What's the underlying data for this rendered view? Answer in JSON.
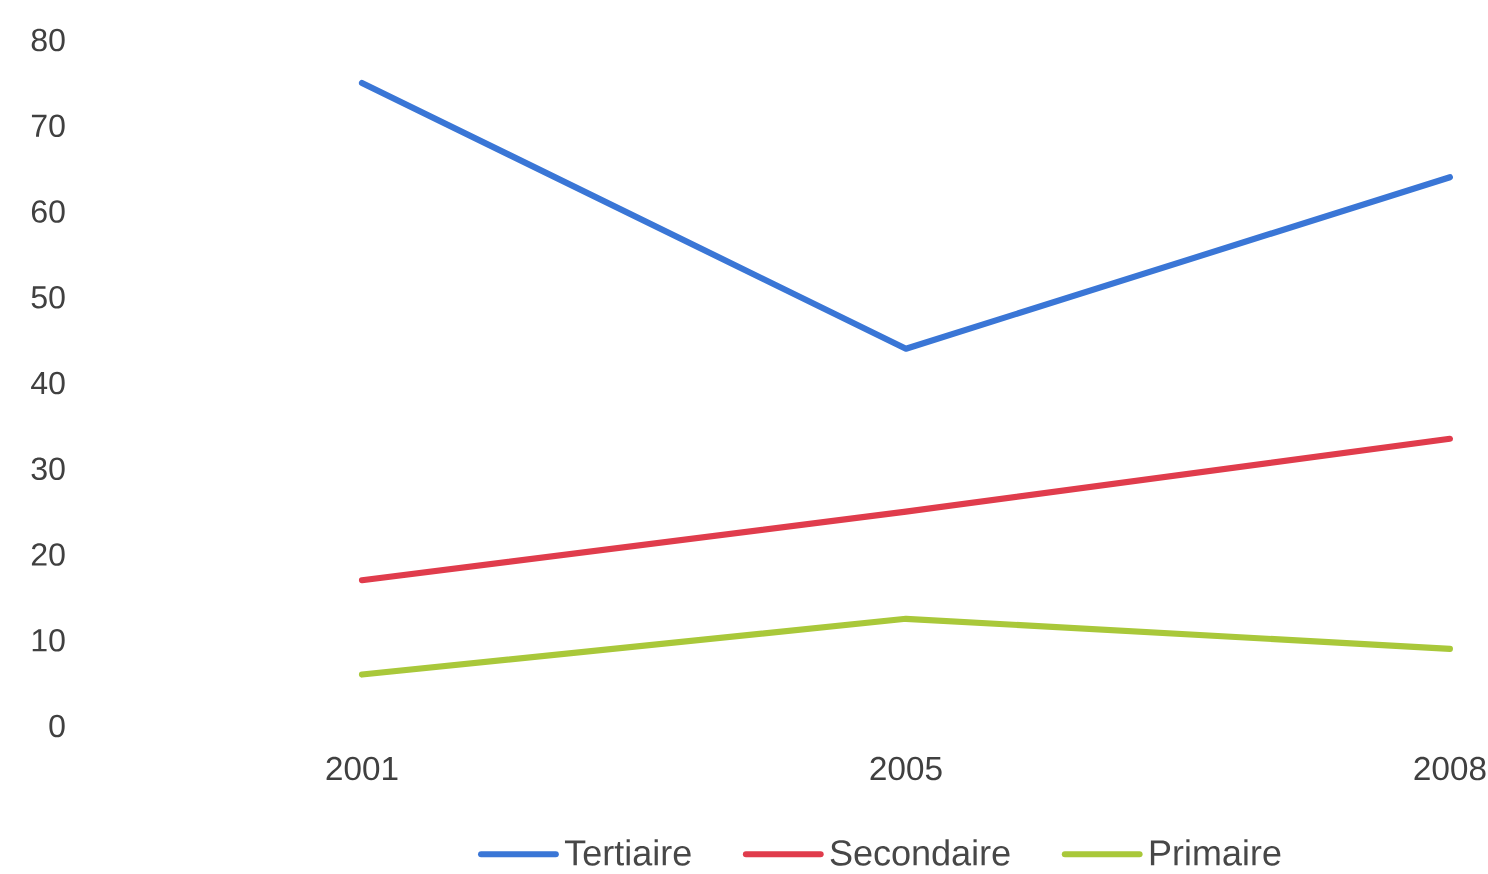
{
  "chart_data": {
    "type": "line",
    "categories": [
      "2001",
      "2005",
      "2008"
    ],
    "series": [
      {
        "name": "Tertiaire",
        "color": "#3a76d6",
        "values": [
          75,
          44,
          64
        ]
      },
      {
        "name": "Secondaire",
        "color": "#e03c4c",
        "values": [
          17,
          25,
          33.5
        ]
      },
      {
        "name": "Primaire",
        "color": "#a9c83a",
        "values": [
          6,
          12.5,
          9
        ]
      }
    ],
    "ylim": [
      0,
      80
    ],
    "yticks": [
      0,
      10,
      20,
      30,
      40,
      50,
      60,
      70,
      80
    ],
    "legend": "bottom",
    "line_style": "solid"
  }
}
